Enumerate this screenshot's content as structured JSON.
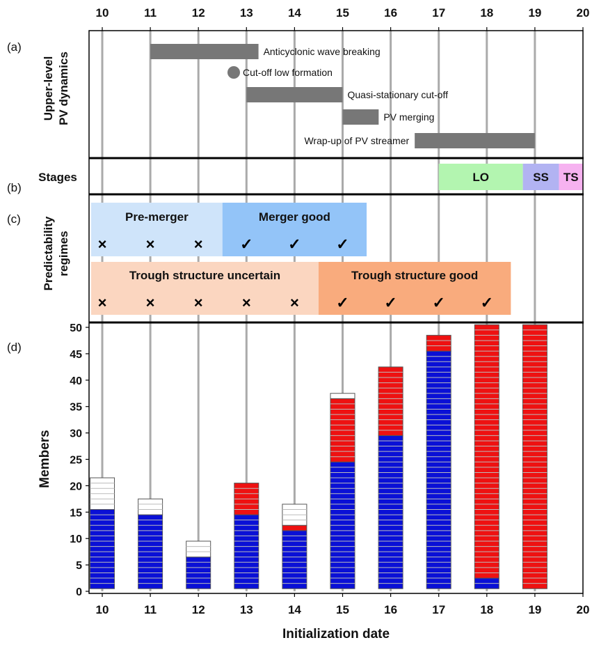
{
  "chart_data": {
    "type": "bar",
    "x_ticks": [
      "10",
      "11",
      "12",
      "13",
      "14",
      "15",
      "16",
      "17",
      "18",
      "19",
      "20"
    ],
    "xlabel": "Initialization date",
    "panel_labels": [
      "(a)",
      "(b)",
      "(c)",
      "(d)"
    ],
    "panel_a": {
      "ylabel_line1": "Upper-level",
      "ylabel_line2": "PV dynamics",
      "events": [
        {
          "label": "Anticyclonic wave breaking",
          "start": 11.0,
          "end": 13.25,
          "shape": "bar",
          "label_side": "right"
        },
        {
          "label": "Cut-off low formation",
          "start": 12.7,
          "end": 12.7,
          "shape": "dot",
          "label_side": "right"
        },
        {
          "label": "Quasi-stationary cut-off",
          "start": 13.0,
          "end": 15.0,
          "shape": "bar",
          "label_side": "right"
        },
        {
          "label": "PV merging",
          "start": 15.0,
          "end": 15.75,
          "shape": "bar",
          "label_side": "right"
        },
        {
          "label": "Wrap-up of PV streamer",
          "start": 16.5,
          "end": 19.0,
          "shape": "bar",
          "label_side": "left"
        }
      ],
      "color": "#777777"
    },
    "panel_b": {
      "ylabel": "Stages",
      "stages": [
        {
          "label": "LO",
          "start": 17.0,
          "end": 18.75,
          "color": "#b3f5b0"
        },
        {
          "label": "SS",
          "start": 18.75,
          "end": 19.5,
          "color": "#b2b3f2"
        },
        {
          "label": "TS",
          "start": 19.5,
          "end": 20.0,
          "color": "#f6b2f0"
        }
      ]
    },
    "panel_c": {
      "ylabel_line1": "Predictability",
      "ylabel_line2": "regimes",
      "rows": [
        {
          "regimes": [
            {
              "label": "Pre-merger",
              "start": 9.75,
              "end": 12.5,
              "color": "#cfe4fa"
            },
            {
              "label": "Merger good",
              "start": 12.5,
              "end": 15.5,
              "color": "#93c4f8"
            }
          ],
          "marks": [
            {
              "x": 10,
              "sym": "×"
            },
            {
              "x": 11,
              "sym": "×"
            },
            {
              "x": 12,
              "sym": "×"
            },
            {
              "x": 13,
              "sym": "✓"
            },
            {
              "x": 14,
              "sym": "✓"
            },
            {
              "x": 15,
              "sym": "✓"
            }
          ]
        },
        {
          "regimes": [
            {
              "label": "Trough structure uncertain",
              "start": 9.75,
              "end": 14.5,
              "color": "#fbd6c0"
            },
            {
              "label": "Trough structure good",
              "start": 14.5,
              "end": 18.5,
              "color": "#f9ab7d"
            }
          ],
          "marks": [
            {
              "x": 10,
              "sym": "×"
            },
            {
              "x": 11,
              "sym": "×"
            },
            {
              "x": 12,
              "sym": "×"
            },
            {
              "x": 13,
              "sym": "×"
            },
            {
              "x": 14,
              "sym": "×"
            },
            {
              "x": 15,
              "sym": "✓"
            },
            {
              "x": 16,
              "sym": "✓"
            },
            {
              "x": 17,
              "sym": "✓"
            },
            {
              "x": 18,
              "sym": "✓"
            }
          ]
        }
      ]
    },
    "panel_d": {
      "ylabel": "Members",
      "ylim": [
        0,
        51
      ],
      "yticks": [
        "0",
        "5",
        "10",
        "15",
        "20",
        "25",
        "30",
        "35",
        "40",
        "45",
        "50"
      ],
      "categories": [
        "10",
        "11",
        "12",
        "13",
        "14",
        "15",
        "16",
        "17",
        "18",
        "19"
      ],
      "series": [
        {
          "values": [
            15,
            14,
            6,
            14,
            11,
            24,
            29,
            45,
            2,
            0
          ],
          "color": "#0a10d6"
        },
        {
          "values": [
            0,
            0,
            0,
            6,
            1,
            12,
            13,
            3,
            48,
            50
          ],
          "color": "#ee1111"
        },
        {
          "values": [
            6,
            3,
            3,
            0,
            4,
            1,
            0,
            0,
            0,
            0
          ],
          "color": "#ffffff"
        }
      ]
    },
    "colors": {
      "axis": "#000000",
      "gridline": "#aaaaaa",
      "member_line": "#bbbbbb"
    }
  }
}
